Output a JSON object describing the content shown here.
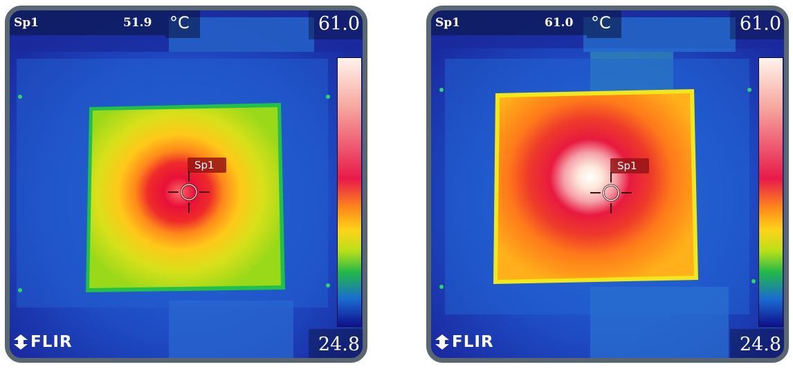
{
  "panels": [
    {
      "spot_label": "Sp1",
      "spot_value": "51.9",
      "unit": "°C",
      "scale_max": "61.0",
      "scale_min": "24.8",
      "spot_tag": "Sp1",
      "logo": "FLIR"
    },
    {
      "spot_label": "Sp1",
      "spot_value": "61.0",
      "unit": "°C",
      "scale_max": "61.0",
      "scale_min": "24.8",
      "spot_tag": "Sp1",
      "logo": "FLIR"
    }
  ],
  "colors": {
    "frame": "#5a6670",
    "background_cold": "#1a2aa8",
    "hot_spot_tag": "#961414"
  },
  "icons": [
    "crosshair-icon",
    "flir-logo-icon"
  ]
}
